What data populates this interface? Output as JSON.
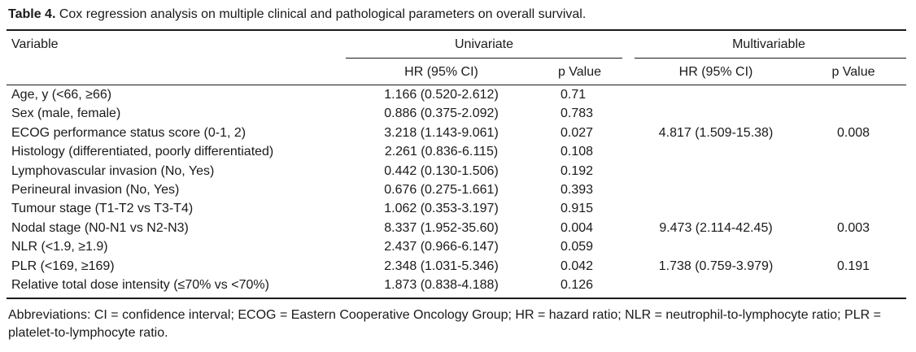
{
  "caption": {
    "label": "Table 4.",
    "text": "Cox regression analysis on multiple clinical and pathological parameters on overall survival."
  },
  "header": {
    "variable": "Variable",
    "univariate": "Univariate",
    "multivariable": "Multivariable",
    "hr": "HR (95% CI)",
    "p": "p Value"
  },
  "rows": [
    {
      "variable": "Age, y (<66, ≥66)",
      "uni_hr": "1.166 (0.520-2.612)",
      "uni_p": "0.71",
      "multi_hr": "",
      "multi_p": ""
    },
    {
      "variable": "Sex (male, female)",
      "uni_hr": "0.886 (0.375-2.092)",
      "uni_p": "0.783",
      "multi_hr": "",
      "multi_p": ""
    },
    {
      "variable": "ECOG performance status score (0-1, 2)",
      "uni_hr": "3.218 (1.143-9.061)",
      "uni_p": "0.027",
      "multi_hr": "4.817 (1.509-15.38)",
      "multi_p": "0.008"
    },
    {
      "variable": "Histology (differentiated, poorly differentiated)",
      "uni_hr": "2.261 (0.836-6.115)",
      "uni_p": "0.108",
      "multi_hr": "",
      "multi_p": ""
    },
    {
      "variable": "Lymphovascular invasion (No, Yes)",
      "uni_hr": "0.442 (0.130-1.506)",
      "uni_p": "0.192",
      "multi_hr": "",
      "multi_p": ""
    },
    {
      "variable": "Perineural invasion (No, Yes)",
      "uni_hr": "0.676 (0.275-1.661)",
      "uni_p": "0.393",
      "multi_hr": "",
      "multi_p": ""
    },
    {
      "variable": "Tumour stage (T1-T2 vs T3-T4)",
      "uni_hr": "1.062 (0.353-3.197)",
      "uni_p": "0.915",
      "multi_hr": "",
      "multi_p": ""
    },
    {
      "variable": "Nodal stage (N0-N1 vs N2-N3)",
      "uni_hr": "8.337 (1.952-35.60)",
      "uni_p": "0.004",
      "multi_hr": "9.473 (2.114-42.45)",
      "multi_p": "0.003"
    },
    {
      "variable": "NLR (<1.9, ≥1.9)",
      "uni_hr": "2.437 (0.966-6.147)",
      "uni_p": "0.059",
      "multi_hr": "",
      "multi_p": ""
    },
    {
      "variable": "PLR (<169, ≥169)",
      "uni_hr": "2.348 (1.031-5.346)",
      "uni_p": "0.042",
      "multi_hr": "1.738 (0.759-3.979)",
      "multi_p": "0.191"
    },
    {
      "variable": "Relative total dose intensity (≤70% vs <70%)",
      "uni_hr": "1.873 (0.838-4.188)",
      "uni_p": "0.126",
      "multi_hr": "",
      "multi_p": ""
    }
  ],
  "footnote": "Abbreviations: CI = confidence interval; ECOG = Eastern Cooperative Oncology Group; HR = hazard ratio; NLR = neutrophil-to-lymphocyte ratio; PLR = platelet-to-lymphocyte ratio."
}
